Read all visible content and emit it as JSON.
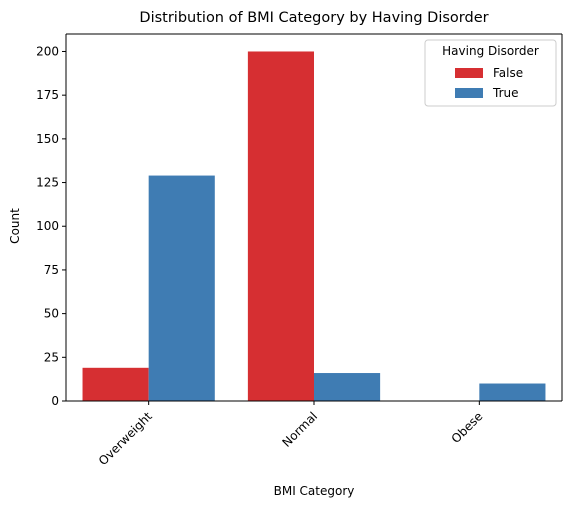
{
  "chart_data": {
    "type": "bar",
    "title": "Distribution of BMI Category by Having Disorder",
    "xlabel": "BMI Category",
    "ylabel": "Count",
    "categories": [
      "Overweight",
      "Normal",
      "Obese"
    ],
    "series": [
      {
        "name": "False",
        "values": [
          19,
          200,
          0
        ],
        "color": "#d62f32"
      },
      {
        "name": "True",
        "values": [
          129,
          16,
          10
        ],
        "color": "#3f7cb3"
      }
    ],
    "ylim": [
      0,
      210
    ],
    "yticks": [
      0,
      25,
      50,
      75,
      100,
      125,
      150,
      175,
      200
    ],
    "grid": false,
    "legend": {
      "title": "Having Disorder",
      "placement": "top-right"
    }
  }
}
